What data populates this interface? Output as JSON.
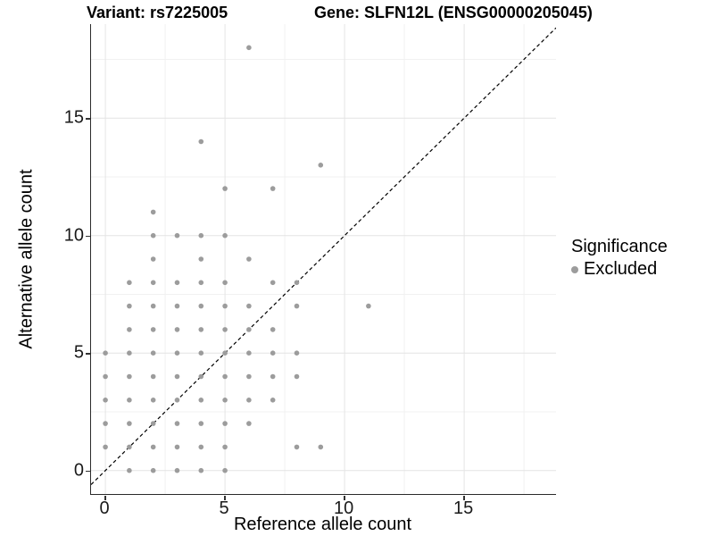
{
  "titles": {
    "variant": "Variant: rs7225005",
    "gene": "Gene: SLFN12L (ENSG00000205045)"
  },
  "legend": {
    "title": "Significance",
    "items": [
      {
        "label": "Excluded",
        "color": "#9c9c9c"
      }
    ]
  },
  "colors": {
    "point": "#9c9c9c",
    "grid_major": "#e4e4e4",
    "grid_minor": "#f1f1f1",
    "axis_line": "#2b2b2b",
    "identity_line": "#000000"
  },
  "chart_data": {
    "type": "scatter",
    "title": "Variant: rs7225005   Gene: SLFN12L (ENSG00000205045)",
    "xlabel": "Reference allele count",
    "ylabel": "Alternative allele count",
    "xlim": [
      -0.6,
      18.84
    ],
    "ylim": [
      -1.0,
      19.0
    ],
    "x_ticks": [
      0,
      5,
      10,
      15
    ],
    "y_ticks": [
      0,
      5,
      10,
      15
    ],
    "x_minor_gridlines": [
      2.5,
      7.5,
      12.5,
      17.5
    ],
    "y_minor_gridlines": [
      2.5,
      7.5,
      12.5,
      17.5
    ],
    "grid": true,
    "legend_position": "right",
    "reference_line": {
      "type": "identity",
      "style": "dashed",
      "from": -0.6,
      "to": 18.84
    },
    "series": [
      {
        "name": "Excluded",
        "color": "#9c9c9c",
        "points": [
          [
            1,
            0
          ],
          [
            2,
            0
          ],
          [
            3,
            0
          ],
          [
            4,
            0
          ],
          [
            5,
            0
          ],
          [
            0,
            1
          ],
          [
            1,
            1
          ],
          [
            2,
            1
          ],
          [
            3,
            1
          ],
          [
            4,
            1
          ],
          [
            5,
            1
          ],
          [
            8,
            1
          ],
          [
            9,
            1
          ],
          [
            0,
            2
          ],
          [
            1,
            2
          ],
          [
            2,
            2
          ],
          [
            3,
            2
          ],
          [
            4,
            2
          ],
          [
            5,
            2
          ],
          [
            6,
            2
          ],
          [
            0,
            3
          ],
          [
            1,
            3
          ],
          [
            2,
            3
          ],
          [
            3,
            3
          ],
          [
            4,
            3
          ],
          [
            5,
            3
          ],
          [
            6,
            3
          ],
          [
            7,
            3
          ],
          [
            0,
            4
          ],
          [
            1,
            4
          ],
          [
            2,
            4
          ],
          [
            3,
            4
          ],
          [
            4,
            4
          ],
          [
            5,
            4
          ],
          [
            6,
            4
          ],
          [
            7,
            4
          ],
          [
            8,
            4
          ],
          [
            0,
            5
          ],
          [
            1,
            5
          ],
          [
            2,
            5
          ],
          [
            3,
            5
          ],
          [
            4,
            5
          ],
          [
            5,
            5
          ],
          [
            6,
            5
          ],
          [
            7,
            5
          ],
          [
            8,
            5
          ],
          [
            1,
            6
          ],
          [
            2,
            6
          ],
          [
            3,
            6
          ],
          [
            4,
            6
          ],
          [
            5,
            6
          ],
          [
            6,
            6
          ],
          [
            7,
            6
          ],
          [
            1,
            7
          ],
          [
            2,
            7
          ],
          [
            3,
            7
          ],
          [
            4,
            7
          ],
          [
            5,
            7
          ],
          [
            6,
            7
          ],
          [
            8,
            7
          ],
          [
            11,
            7
          ],
          [
            1,
            8
          ],
          [
            2,
            8
          ],
          [
            3,
            8
          ],
          [
            4,
            8
          ],
          [
            5,
            8
          ],
          [
            7,
            8
          ],
          [
            8,
            8
          ],
          [
            2,
            9
          ],
          [
            4,
            9
          ],
          [
            6,
            9
          ],
          [
            2,
            10
          ],
          [
            3,
            10
          ],
          [
            4,
            10
          ],
          [
            5,
            10
          ],
          [
            2,
            11
          ],
          [
            5,
            12
          ],
          [
            7,
            12
          ],
          [
            9,
            13
          ],
          [
            4,
            14
          ],
          [
            6,
            18
          ]
        ]
      }
    ]
  }
}
